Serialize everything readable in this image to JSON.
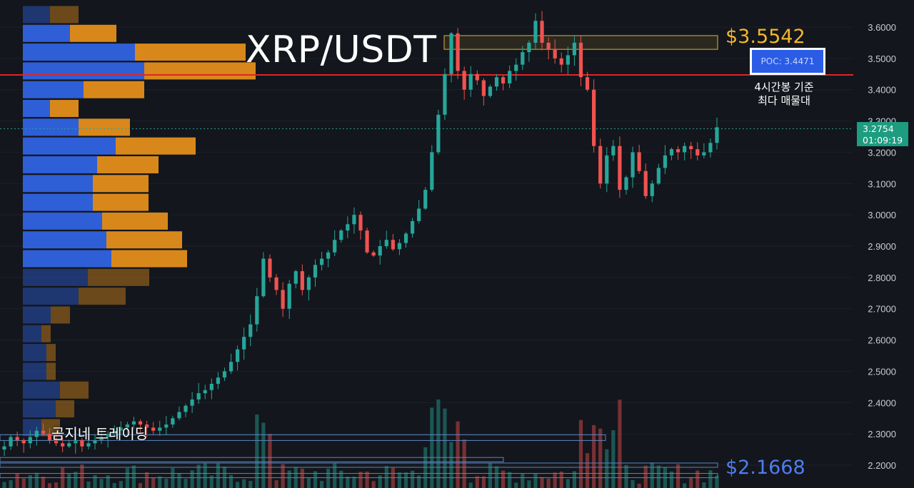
{
  "annotations": {
    "pair_title": "XRP/USDT",
    "high_price_label": "$3.5542",
    "low_price_label": "$2.1668",
    "poc_box": "POC: 3.4471",
    "poc_note_line1": "4시간봉 기준",
    "poc_note_line2": "최다 매물대",
    "watermark": "곰지네 트레이딩"
  },
  "last_price": {
    "price": "3.2754",
    "countdown": "01:09:19"
  },
  "colors": {
    "background": "#13161c",
    "up": "#26a69a",
    "down": "#ef5350",
    "vp_blue": "#2f5fd6",
    "vp_orange": "#d8881b",
    "poc_line": "#e02424",
    "hi_zone": "#e0b13a",
    "lo_zone": "#5b86c5",
    "axis_text": "#c9ccd2"
  },
  "chart_data": {
    "type": "candlestick",
    "symbol": "XRP/USDT",
    "timeframe": "4시간봉",
    "y_axis_ticks": [
      3.6,
      3.5,
      3.4,
      3.3,
      3.2,
      3.1,
      3.0,
      2.9,
      2.8,
      2.7,
      2.6,
      2.5,
      2.4,
      2.3,
      2.2
    ],
    "ylim": [
      2.17,
      3.66
    ],
    "poc_price": 3.4471,
    "high_zone": {
      "from": 3.529,
      "to": 3.5728
    },
    "low_zone_levels": [
      2.2177,
      2.2,
      2.1668
    ],
    "mid_zone_level": 2.288,
    "last_price": 3.2754,
    "close_path": [
      2.26,
      2.29,
      2.28,
      2.27,
      2.29,
      2.31,
      2.3,
      2.28,
      2.27,
      2.26,
      2.27,
      2.28,
      2.26,
      2.27,
      2.28,
      2.29,
      2.3,
      2.31,
      2.32,
      2.33,
      2.34,
      2.33,
      2.32,
      2.31,
      2.32,
      2.33,
      2.35,
      2.37,
      2.39,
      2.41,
      2.43,
      2.44,
      2.46,
      2.48,
      2.5,
      2.53,
      2.57,
      2.61,
      2.65,
      2.74,
      2.86,
      2.8,
      2.76,
      2.7,
      2.78,
      2.82,
      2.76,
      2.8,
      2.84,
      2.86,
      2.88,
      2.92,
      2.95,
      2.97,
      3.0,
      2.95,
      2.88,
      2.87,
      2.9,
      2.92,
      2.89,
      2.91,
      2.94,
      2.98,
      3.02,
      3.08,
      3.2,
      3.32,
      3.45,
      3.58,
      3.46,
      3.4,
      3.45,
      3.43,
      3.38,
      3.41,
      3.44,
      3.42,
      3.46,
      3.48,
      3.52,
      3.55,
      3.62,
      3.55,
      3.53,
      3.5,
      3.48,
      3.51,
      3.55,
      3.44,
      3.4,
      3.22,
      3.1,
      3.19,
      3.22,
      3.08,
      3.12,
      3.2,
      3.14,
      3.06,
      3.1,
      3.15,
      3.19,
      3.21,
      3.2,
      3.22,
      3.21,
      3.19,
      3.2,
      3.23,
      3.28
    ],
    "volume_profile_rows": [
      {
        "price": 3.64,
        "buy": 38,
        "sell": 40,
        "dim": true
      },
      {
        "price": 3.58,
        "buy": 66,
        "sell": 65
      },
      {
        "price": 3.52,
        "buy": 157,
        "sell": 155
      },
      {
        "price": 3.46,
        "buy": 170,
        "sell": 156
      },
      {
        "price": 3.4,
        "buy": 85,
        "sell": 85
      },
      {
        "price": 3.34,
        "buy": 38,
        "sell": 40
      },
      {
        "price": 3.28,
        "buy": 78,
        "sell": 72
      },
      {
        "price": 3.22,
        "buy": 130,
        "sell": 112
      },
      {
        "price": 3.16,
        "buy": 104,
        "sell": 86
      },
      {
        "price": 3.1,
        "buy": 98,
        "sell": 78
      },
      {
        "price": 3.04,
        "buy": 98,
        "sell": 78
      },
      {
        "price": 2.98,
        "buy": 111,
        "sell": 92
      },
      {
        "price": 2.92,
        "buy": 117,
        "sell": 106
      },
      {
        "price": 2.86,
        "buy": 124,
        "sell": 106
      },
      {
        "price": 2.8,
        "buy": 91,
        "sell": 86,
        "dim": true
      },
      {
        "price": 2.74,
        "buy": 78,
        "sell": 66,
        "dim": true
      },
      {
        "price": 2.68,
        "buy": 39,
        "sell": 27,
        "dim": true
      },
      {
        "price": 2.62,
        "buy": 26,
        "sell": 13,
        "dim": true
      },
      {
        "price": 2.56,
        "buy": 33,
        "sell": 13,
        "dim": true
      },
      {
        "price": 2.5,
        "buy": 33,
        "sell": 13,
        "dim": true
      },
      {
        "price": 2.44,
        "buy": 52,
        "sell": 40,
        "dim": true
      },
      {
        "price": 2.38,
        "buy": 46,
        "sell": 26,
        "dim": true
      },
      {
        "price": 2.32,
        "buy": 26,
        "sell": 26,
        "dim": true
      }
    ]
  }
}
